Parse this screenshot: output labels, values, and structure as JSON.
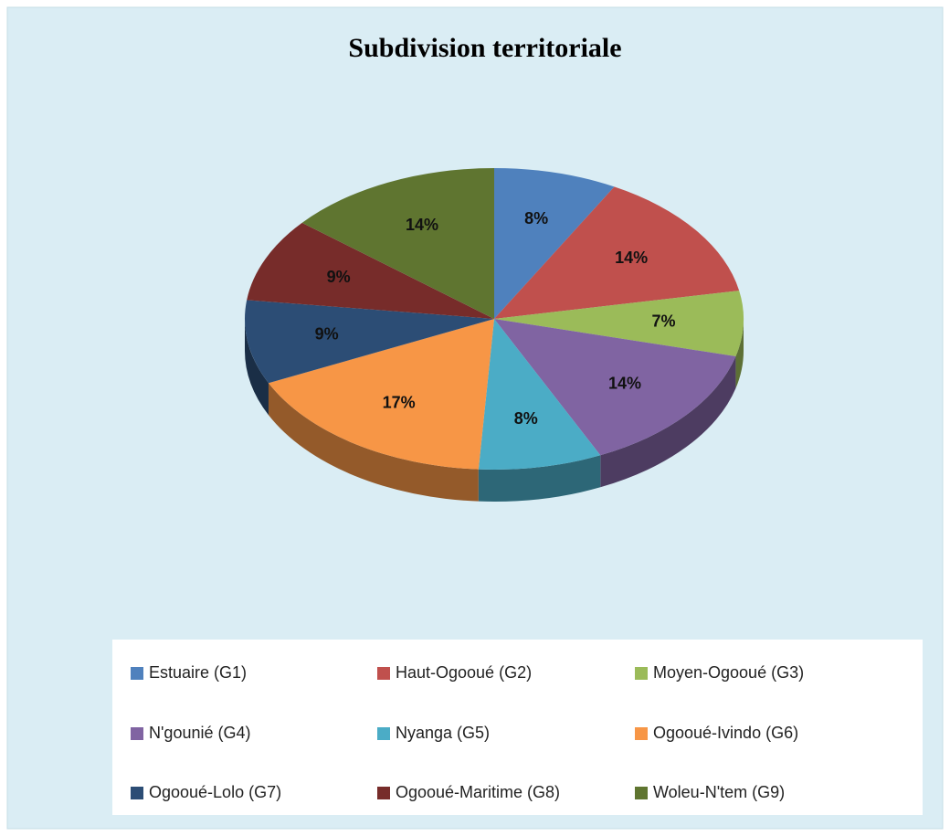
{
  "chart_data": {
    "type": "pie",
    "title": "Subdivision territoriale",
    "categories": [
      "Estuaire (G1)",
      "Haut-Ogooué (G2)",
      "Moyen-Ogooué (G3)",
      "N'gounié (G4)",
      "Nyanga (G5)",
      "Ogooué-Ivindo (G6)",
      "Ogooué-Lolo (G7)",
      "Ogooué-Maritime (G8)",
      "Woleu-N'tem (G9)"
    ],
    "values": [
      8,
      14,
      7,
      14,
      8,
      17,
      9,
      9,
      14
    ],
    "value_labels": [
      "8%",
      "14%",
      "7%",
      "14%",
      "8%",
      "17%",
      "9%",
      "9%",
      "14%"
    ],
    "colors": [
      "#4f81bd",
      "#c0504d",
      "#9bbb59",
      "#8064a2",
      "#4bacc6",
      "#f79646",
      "#2c4d75",
      "#772c2a",
      "#5f7530"
    ],
    "legend": "bottom"
  }
}
